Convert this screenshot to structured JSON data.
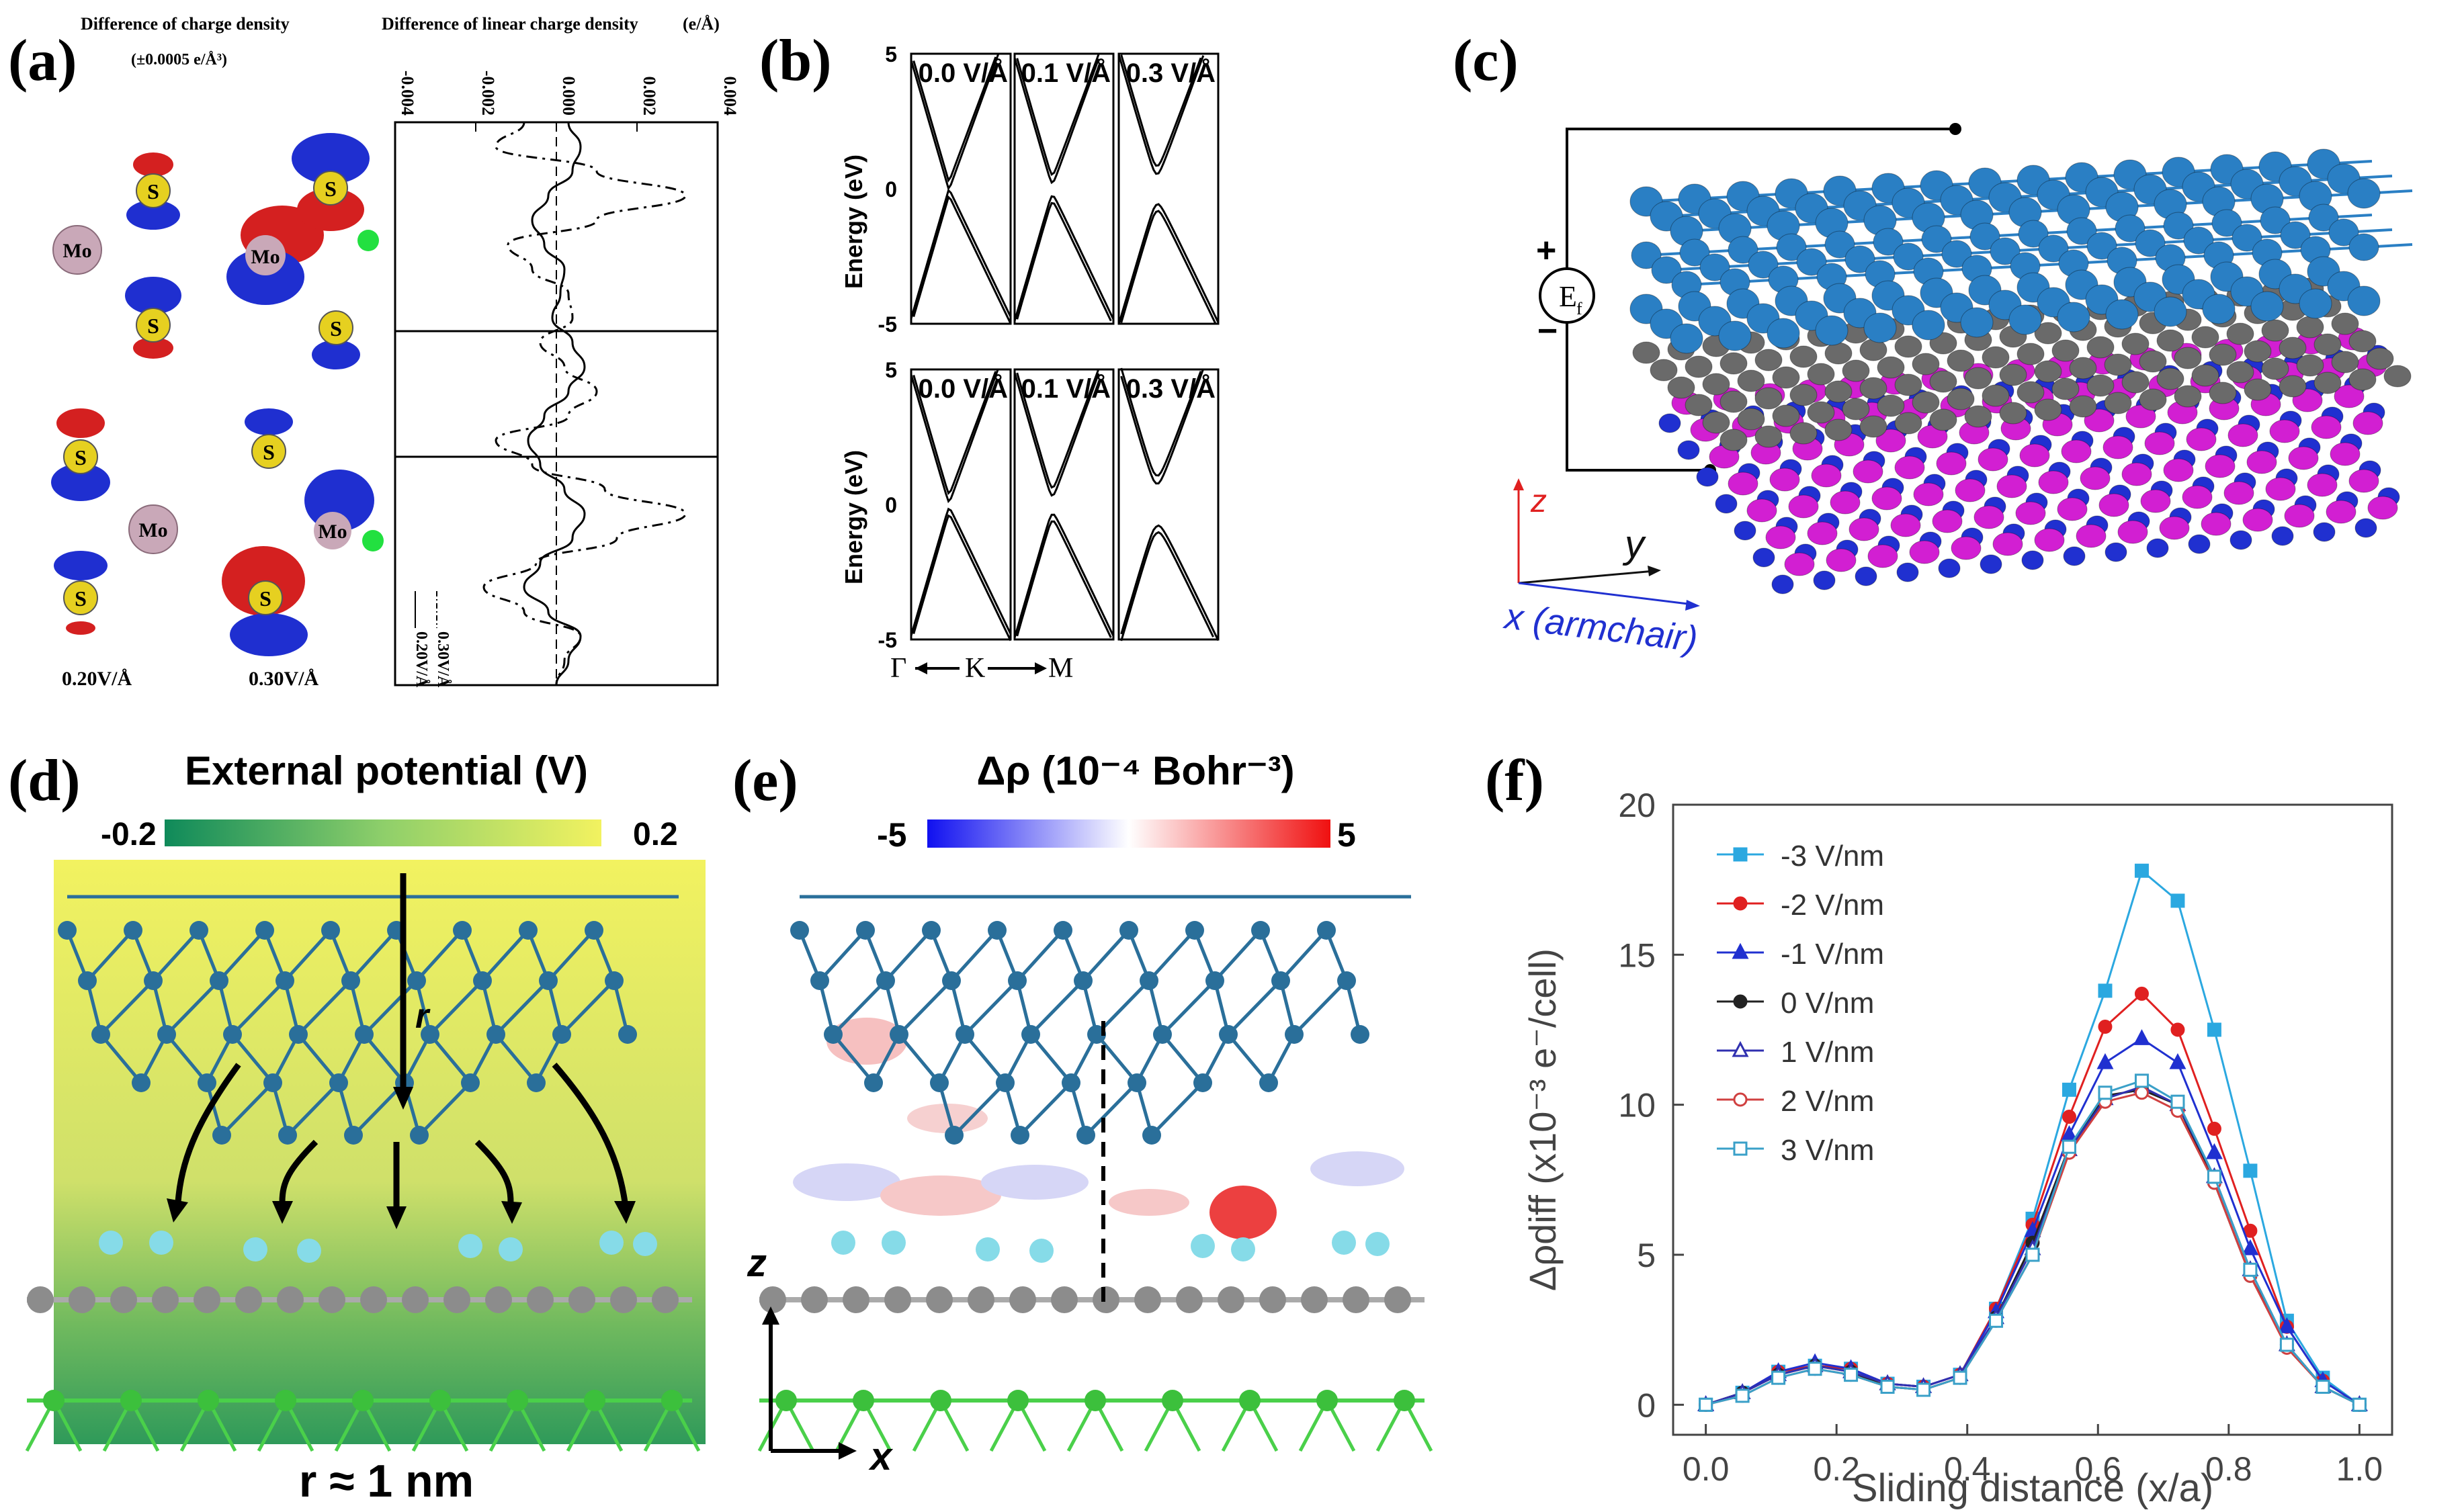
{
  "panel_labels": {
    "a": "(a)",
    "b": "(b)",
    "c": "(c)",
    "d": "(d)",
    "e": "(e)",
    "f": "(f)"
  },
  "colors": {
    "blue_lobe": "#1f2fd0",
    "red_lobe": "#d42020",
    "green": "#22e040",
    "top_atom": "#2a7fc4",
    "graphene": "#8c8c8c",
    "magenta": "#d21fd2",
    "h_atom": "#86dbe8",
    "grad_low": "#0f8a5a",
    "grad_high": "#f2f260",
    "f_m3": "#2ba8e0",
    "f_m2": "#e02020",
    "f_m1": "#2030d0",
    "f_0": "#222222",
    "f_1": "#3030b0",
    "f_2": "#d04040",
    "f_3": "#3aa0c8"
  },
  "panel_a": {
    "title_left": "Difference of charge density",
    "subtitle_left": "(±0.0005 e/Å³)",
    "title_right": "Difference of linear charge density",
    "unit_right": "(e/Å)",
    "ticks": [
      "-0.004",
      "-0.002",
      "0.000",
      "0.002",
      "0.004"
    ],
    "labels_bottom": [
      "0.20V/Å",
      "0.30V/Å"
    ],
    "legend": [
      "0.30V/Å",
      "0.20V/Å"
    ],
    "atoms": {
      "mo": "Mo",
      "s": "S"
    },
    "chart_data": {
      "type": "line",
      "xlabel": "Difference of linear charge density",
      "xlim": [
        -0.004,
        0.004
      ],
      "series": [
        {
          "name": "0.20V/Å",
          "x": [
            0.0003,
            0.0006,
            0.0004,
            -0.0002,
            -0.0006,
            -0.0003,
            0.0002,
            0.0001,
            -0.0001,
            0.0004,
            0.0007,
            0.0003,
            -0.0003,
            -0.0007,
            -0.0004,
            0.0002,
            0.0007,
            0.0004,
            -0.0004,
            -0.0008,
            -0.0002,
            0.0006,
            0.0003,
            0.0
          ]
        },
        {
          "name": "0.30V/Å",
          "x": [
            -0.0008,
            -0.0015,
            0.001,
            0.0032,
            0.001,
            -0.0012,
            -0.0006,
            0.0003,
            0.0004,
            -0.0004,
            0.0002,
            0.001,
            0.0003,
            -0.0015,
            -0.0006,
            0.0012,
            0.0032,
            0.0015,
            -0.0005,
            -0.0018,
            -0.0008,
            0.0006,
            0.0002,
            0.0
          ]
        }
      ]
    }
  },
  "panel_b": {
    "ylabel": "Energy (eV)",
    "yticks": [
      "5",
      "0",
      "-5"
    ],
    "fields": [
      "0.0 V/Å",
      "0.1 V/Å",
      "0.3 V/Å"
    ],
    "kpath": {
      "g": "Γ",
      "k": "K",
      "m": "M"
    }
  },
  "panel_c": {
    "source": "E",
    "source_sub": "f",
    "plus": "+",
    "minus": "−",
    "axis_z": "z",
    "axis_y": "y",
    "axis_x": "x (armchair)"
  },
  "panel_d": {
    "title": "External potential (V)",
    "min": "-0.2",
    "max": "0.2",
    "r_label": "r",
    "r_caption": "r ≈ 1 nm"
  },
  "panel_e": {
    "title": "Δρ  (10⁻⁴ Bohr⁻³)",
    "min": "-5",
    "max": "5",
    "axis_z": "z",
    "axis_x": "x"
  },
  "panel_f": {
    "chart_data": {
      "type": "line",
      "xlabel": "Sliding distance (x/a)",
      "ylabel": "Δρdiff (x10⁻³ e⁻/cell)",
      "xlim": [
        -0.05,
        1.05
      ],
      "ylim": [
        -1,
        20
      ],
      "xticks": [
        "0.0",
        "0.2",
        "0.4",
        "0.6",
        "0.8",
        "1.0"
      ],
      "yticks": [
        "0",
        "5",
        "10",
        "15",
        "20"
      ],
      "x": [
        0.0,
        0.056,
        0.111,
        0.167,
        0.222,
        0.278,
        0.333,
        0.389,
        0.444,
        0.5,
        0.556,
        0.611,
        0.667,
        0.722,
        0.778,
        0.833,
        0.889,
        0.944,
        1.0
      ],
      "series": [
        {
          "name": "-3 V/nm",
          "values": [
            0.0,
            0.4,
            1.1,
            1.3,
            1.2,
            0.7,
            0.6,
            1.0,
            3.2,
            6.2,
            10.5,
            13.8,
            17.8,
            16.8,
            12.5,
            7.8,
            2.8,
            0.9,
            0.0
          ]
        },
        {
          "name": "-2 V/nm",
          "values": [
            0.0,
            0.4,
            1.1,
            1.3,
            1.2,
            0.7,
            0.6,
            1.0,
            3.2,
            6.0,
            9.6,
            12.6,
            13.7,
            12.5,
            9.2,
            5.8,
            2.6,
            0.8,
            0.0
          ]
        },
        {
          "name": "-1 V/nm",
          "values": [
            0.0,
            0.4,
            1.1,
            1.4,
            1.2,
            0.7,
            0.6,
            1.0,
            3.1,
            5.8,
            9.0,
            11.4,
            12.2,
            11.4,
            8.4,
            5.2,
            2.6,
            0.8,
            0.0
          ]
        },
        {
          "name": "0 V/nm",
          "values": [
            0.0,
            0.4,
            1.0,
            1.3,
            1.1,
            0.6,
            0.5,
            0.9,
            2.9,
            5.4,
            8.6,
            10.3,
            10.5,
            10.0,
            7.4,
            4.3,
            2.0,
            0.6,
            0.0
          ]
        },
        {
          "name": "1 V/nm",
          "values": [
            0.0,
            0.4,
            1.0,
            1.3,
            1.1,
            0.7,
            0.6,
            1.0,
            2.9,
            5.2,
            8.5,
            10.2,
            10.6,
            10.0,
            7.6,
            4.5,
            2.0,
            0.6,
            0.0
          ]
        },
        {
          "name": "2 V/nm",
          "values": [
            0.0,
            0.3,
            0.9,
            1.2,
            1.0,
            0.6,
            0.5,
            0.9,
            2.8,
            5.0,
            8.4,
            10.1,
            10.4,
            9.8,
            7.4,
            4.3,
            1.9,
            0.6,
            0.0
          ]
        },
        {
          "name": "3 V/nm",
          "values": [
            0.0,
            0.3,
            0.9,
            1.2,
            1.0,
            0.6,
            0.5,
            0.9,
            2.8,
            5.0,
            8.6,
            10.4,
            10.8,
            10.1,
            7.6,
            4.5,
            2.0,
            0.6,
            0.0
          ]
        }
      ]
    }
  }
}
